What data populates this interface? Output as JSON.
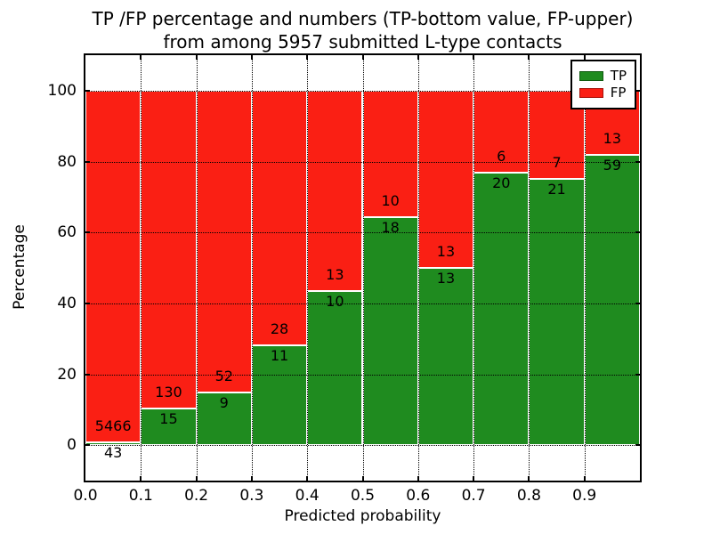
{
  "chart_data": {
    "type": "bar",
    "stacked": true,
    "normalized_to_percent": true,
    "title_lines": [
      "TP /FP percentage and numbers (TP-bottom value, FP-upper)",
      "from among 5957 submitted L-type contacts"
    ],
    "xlabel": "Predicted probability",
    "ylabel": "Percentage",
    "xlim": [
      0.0,
      1.0
    ],
    "ylim": [
      -10,
      110
    ],
    "x_tick_labels": [
      "0.0",
      "0.1",
      "0.2",
      "0.3",
      "0.4",
      "0.5",
      "0.6",
      "0.7",
      "0.8",
      "0.9"
    ],
    "y_tick_values": [
      0,
      20,
      40,
      60,
      80,
      100
    ],
    "grid_style": "dotted",
    "total_contacts": 5957,
    "legend": {
      "position": "upper right",
      "entries": [
        {
          "label": "TP",
          "color": "#1f8b1f",
          "edge": "#0f5a0f"
        },
        {
          "label": "FP",
          "color": "#fa1f14",
          "edge": "#a81008"
        }
      ]
    },
    "colors": {
      "tp": "#1f8b1f",
      "fp": "#fa1f14"
    },
    "bins": [
      {
        "range": [
          0.0,
          0.1
        ],
        "tp": 43,
        "fp": 5466,
        "tp_pct": 0.78
      },
      {
        "range": [
          0.1,
          0.2
        ],
        "tp": 15,
        "fp": 130,
        "tp_pct": 10.34
      },
      {
        "range": [
          0.2,
          0.3
        ],
        "tp": 9,
        "fp": 52,
        "tp_pct": 14.75
      },
      {
        "range": [
          0.3,
          0.4
        ],
        "tp": 11,
        "fp": 28,
        "tp_pct": 28.21
      },
      {
        "range": [
          0.4,
          0.5
        ],
        "tp": 10,
        "fp": 13,
        "tp_pct": 43.48
      },
      {
        "range": [
          0.5,
          0.6
        ],
        "tp": 18,
        "fp": 10,
        "tp_pct": 64.29
      },
      {
        "range": [
          0.6,
          0.7
        ],
        "tp": 13,
        "fp": 13,
        "tp_pct": 50.0
      },
      {
        "range": [
          0.7,
          0.8
        ],
        "tp": 20,
        "fp": 6,
        "tp_pct": 76.92
      },
      {
        "range": [
          0.8,
          0.9
        ],
        "tp": 21,
        "fp": 7,
        "tp_pct": 75.0
      },
      {
        "range": [
          0.9,
          1.0
        ],
        "tp": 59,
        "fp": 13,
        "tp_pct": 81.94
      }
    ]
  }
}
